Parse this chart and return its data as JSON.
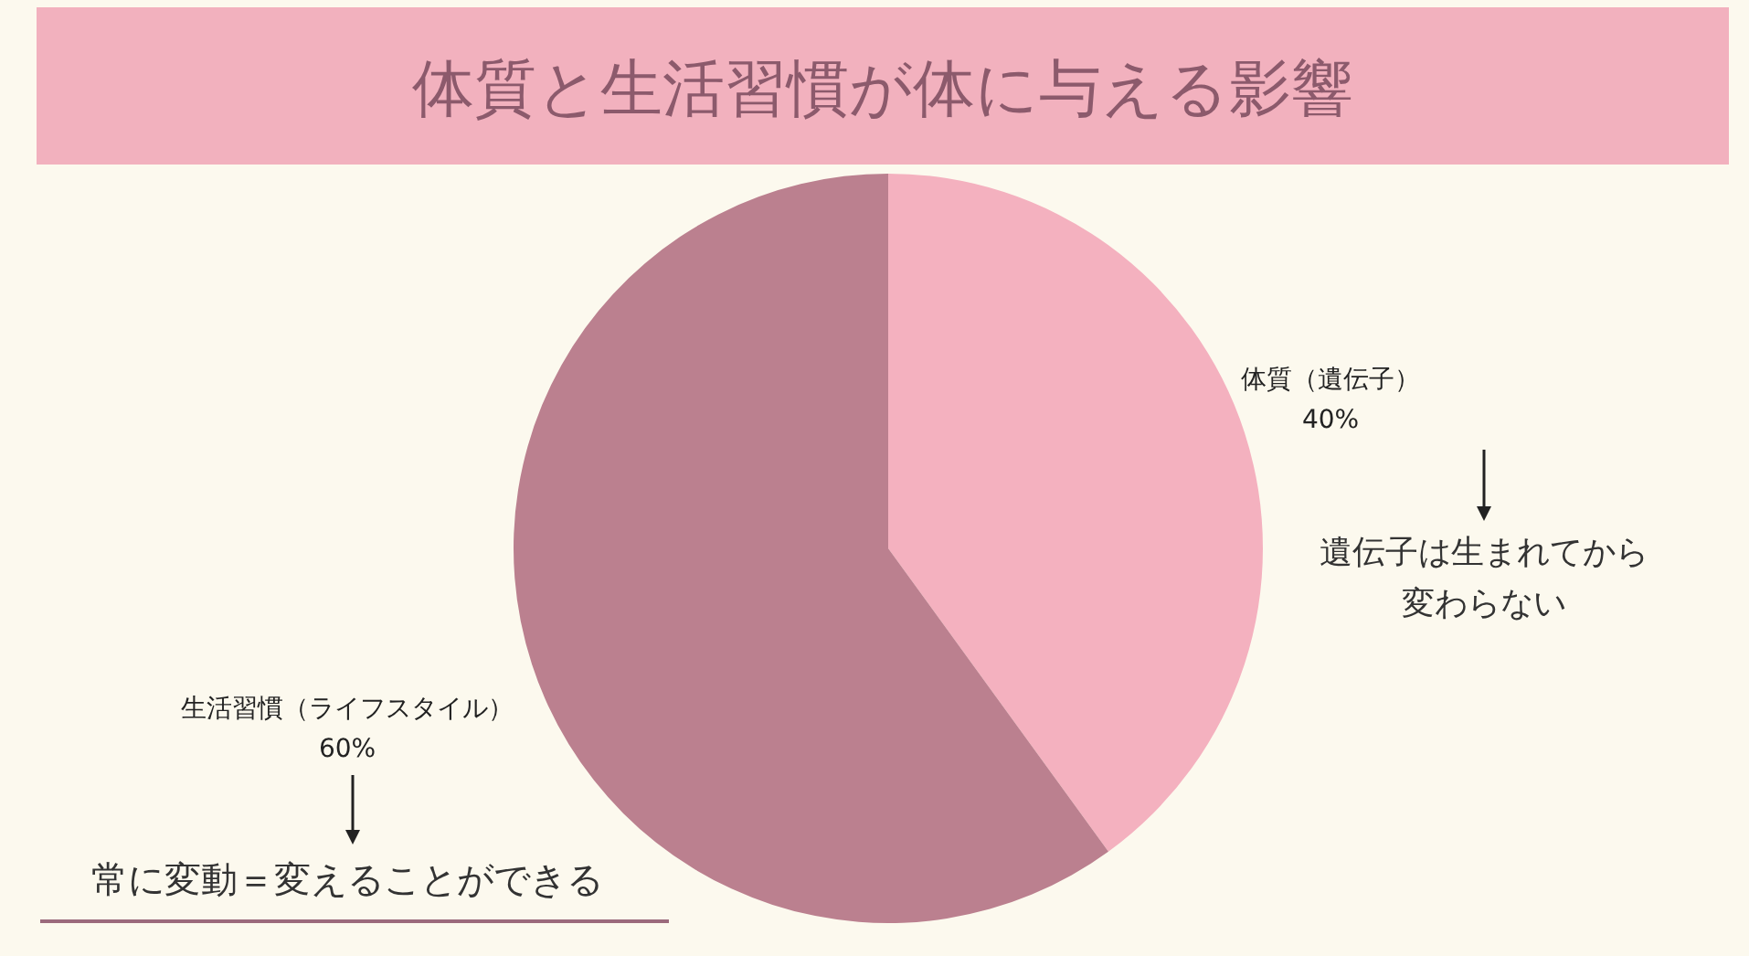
{
  "chart_data": {
    "type": "pie",
    "title": "体質と生活習慣が体に与える影響",
    "categories": [
      "体質（遺伝子）",
      "生活習慣（ライフスタイル）"
    ],
    "values": [
      40,
      60
    ],
    "value_labels": [
      "40%",
      "60%"
    ],
    "colors": [
      "#f4b1bf",
      "#bb808f"
    ],
    "annotations": [
      "遺伝子は生まれてから変わらない",
      "常に変動＝変えることができる"
    ]
  }
}
